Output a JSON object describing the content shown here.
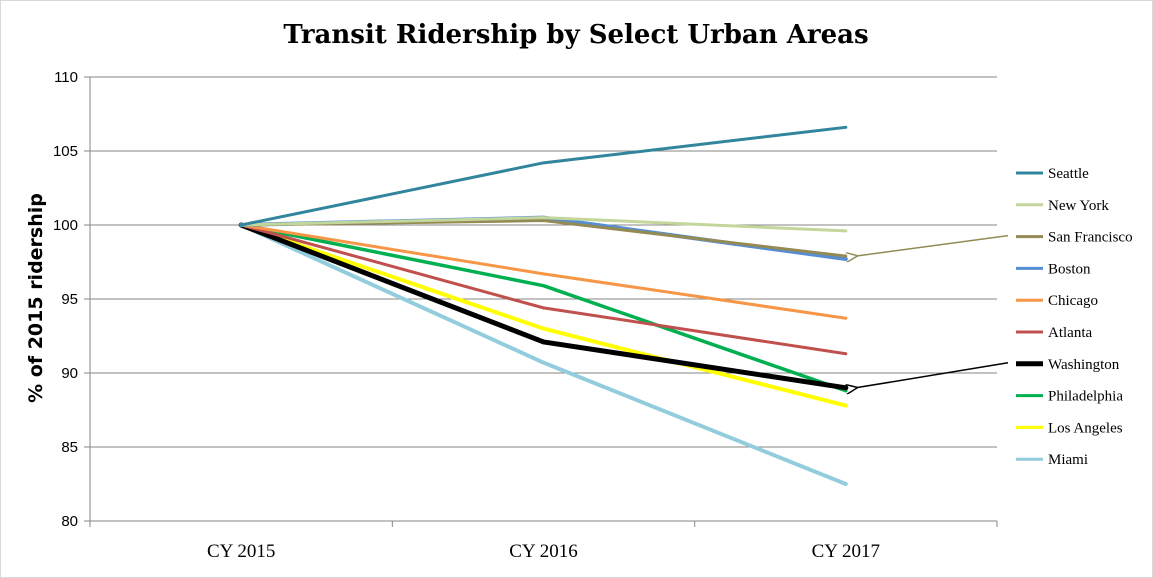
{
  "chart_data": {
    "type": "line",
    "title": "Transit Ridership by Select Urban Areas",
    "ylabel": "% of 2015 ridership",
    "xlabel": "",
    "categories": [
      "CY 2015",
      "CY 2016",
      "CY 2017"
    ],
    "ylim": [
      80,
      110
    ],
    "yticks": [
      80,
      85,
      90,
      95,
      100,
      105,
      110
    ],
    "grid": "horizontal",
    "legend": "right",
    "series": [
      {
        "name": "Seattle",
        "color": "#31859c",
        "values": [
          100,
          104.2,
          106.6
        ]
      },
      {
        "name": "New York",
        "color": "#c3d69b",
        "values": [
          100,
          100.5,
          99.6
        ]
      },
      {
        "name": "San Francisco",
        "color": "#948a54",
        "values": [
          100,
          100.3,
          97.9
        ]
      },
      {
        "name": "Boston",
        "color": "#558ed5",
        "values": [
          100,
          100.5,
          97.7
        ]
      },
      {
        "name": "Chicago",
        "color": "#f79646",
        "values": [
          100,
          96.7,
          93.7
        ]
      },
      {
        "name": "Atlanta",
        "color": "#c0504d",
        "values": [
          100,
          94.4,
          91.3
        ]
      },
      {
        "name": "Washington",
        "color": "#000000",
        "values": [
          100,
          92.1,
          89.0
        ]
      },
      {
        "name": "Philadelphia",
        "color": "#00b050",
        "values": [
          100,
          95.9,
          88.8
        ]
      },
      {
        "name": "Los Angeles",
        "color": "#ffff00",
        "values": [
          100,
          93.0,
          87.8
        ]
      },
      {
        "name": "Miami",
        "color": "#93cddd",
        "values": [
          100,
          90.7,
          82.5
        ]
      }
    ],
    "annotations": [
      {
        "type": "arrow",
        "points_to": "San Francisco",
        "color": "#948a54"
      },
      {
        "type": "arrow",
        "points_to": "Washington",
        "color": "#000000"
      }
    ]
  }
}
